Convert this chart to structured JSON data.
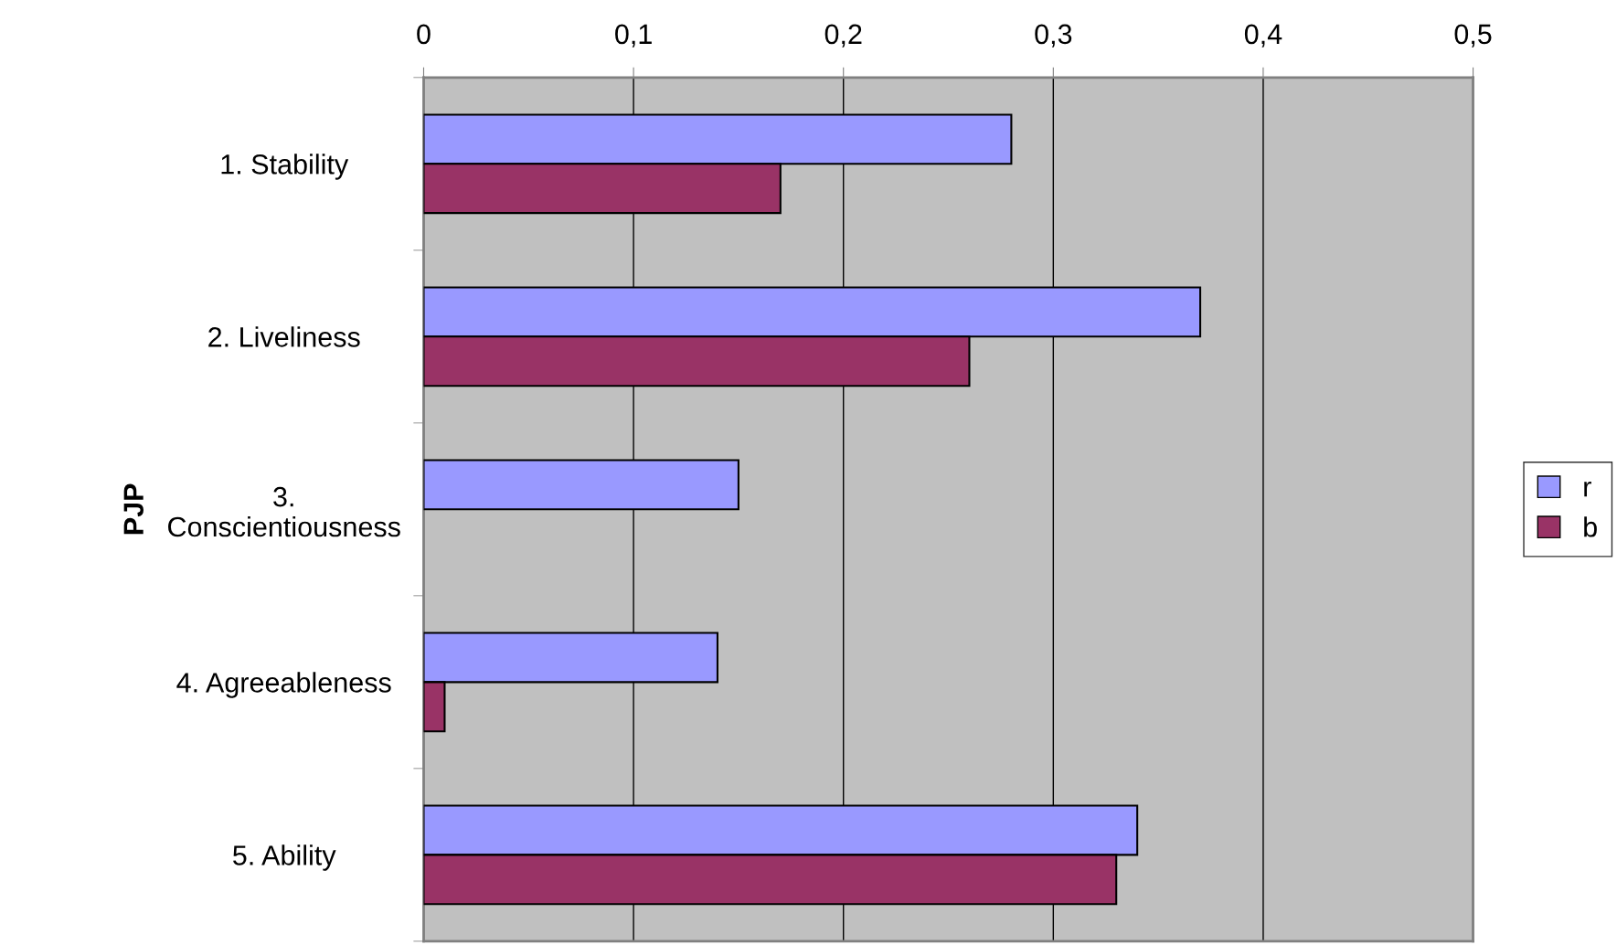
{
  "chart_data": {
    "type": "bar",
    "orientation": "horizontal",
    "ylabel": "PJP",
    "categories": [
      "1. Stability",
      "2. Liveliness",
      "3.\nConscientiousness",
      "4. Agreeableness",
      "5. Ability"
    ],
    "series": [
      {
        "name": "r",
        "color": "#9999ff",
        "values": [
          0.28,
          0.37,
          0.15,
          0.14,
          0.34
        ]
      },
      {
        "name": "b",
        "color": "#993366",
        "values": [
          0.17,
          0.26,
          null,
          0.01,
          0.33
        ]
      }
    ],
    "xlim": [
      0,
      0.5
    ],
    "xticks": [
      0,
      {
        "value": 0.1,
        "label": "0,1"
      },
      {
        "value": 0.2,
        "label": "0,2"
      },
      {
        "value": 0.3,
        "label": "0,3"
      },
      {
        "value": 0.4,
        "label": "0,4"
      },
      {
        "value": 0.5,
        "label": "0,5"
      }
    ],
    "grid": "x",
    "legend": "right"
  }
}
